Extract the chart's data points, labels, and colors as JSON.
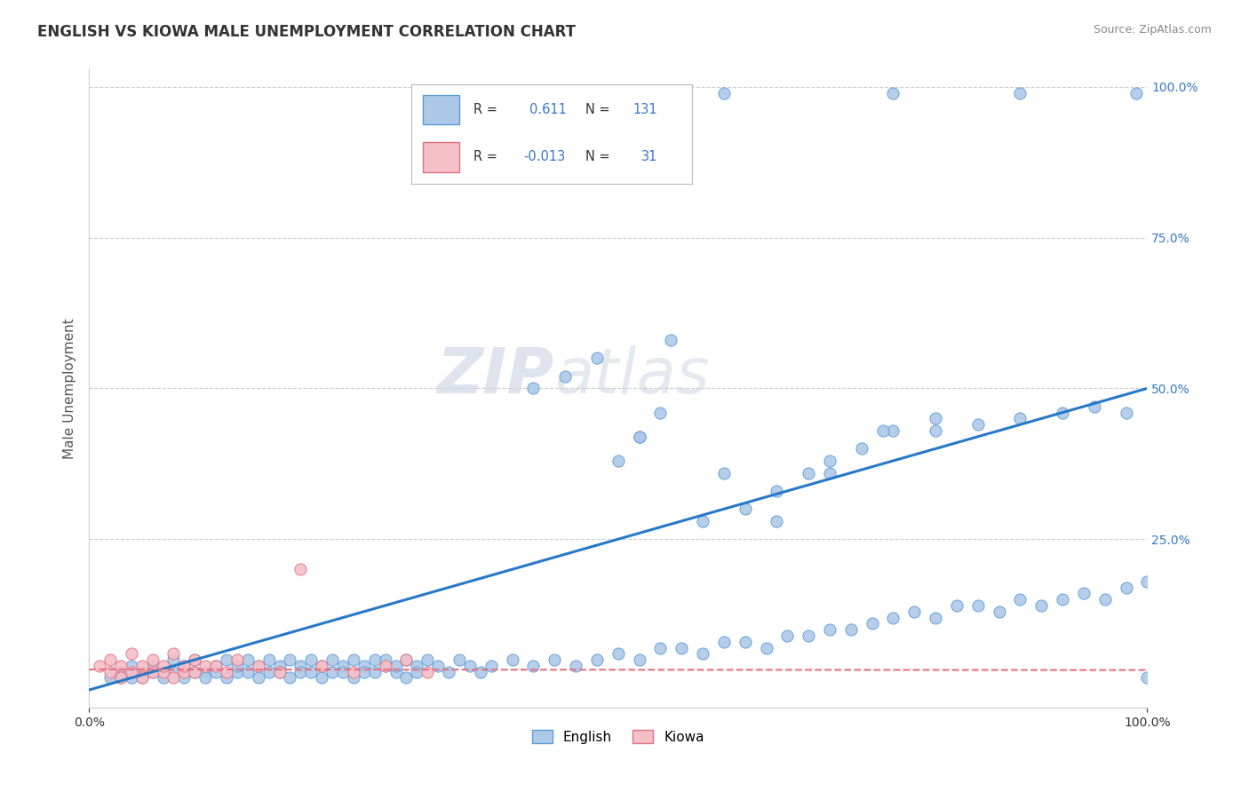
{
  "title": "ENGLISH VS KIOWA MALE UNEMPLOYMENT CORRELATION CHART",
  "source_text": "Source: ZipAtlas.com",
  "ylabel": "Male Unemployment",
  "xlim": [
    0.0,
    1.0
  ],
  "ylim": [
    -0.03,
    1.03
  ],
  "ytick_positions": [
    0.0,
    0.25,
    0.5,
    0.75,
    1.0
  ],
  "ytick_labels": [
    "",
    "25.0%",
    "50.0%",
    "75.0%",
    "100.0%"
  ],
  "english_fill_color": "#aec9e8",
  "english_edge_color": "#5b9bd5",
  "kiowa_fill_color": "#f5bfc8",
  "kiowa_edge_color": "#e07080",
  "english_line_color": "#2878c8",
  "kiowa_line_color": "#e87080",
  "grid_color": "#cccccc",
  "english_R": 0.611,
  "english_N": 131,
  "kiowa_R": -0.013,
  "kiowa_N": 31,
  "legend_label_english": "English",
  "legend_label_kiowa": "Kiowa",
  "watermark_ZIP": "ZIP",
  "watermark_atlas": "atlas",
  "background_color": "#ffffff",
  "title_color": "#333333",
  "source_color": "#888888",
  "ylabel_color": "#555555",
  "ytick_color": "#3878c8",
  "xtick_color": "#333333",
  "legend_R_color": "#333333",
  "legend_val_color": "#3878c8",
  "eng_trend_x": [
    0.0,
    1.0
  ],
  "eng_trend_y": [
    0.0,
    0.5
  ],
  "kio_trend_x": [
    0.0,
    1.0
  ],
  "kio_trend_y": [
    0.034,
    0.033
  ],
  "english_scatter_x": [
    0.02,
    0.03,
    0.03,
    0.04,
    0.04,
    0.05,
    0.05,
    0.06,
    0.06,
    0.07,
    0.07,
    0.08,
    0.08,
    0.09,
    0.09,
    0.1,
    0.1,
    0.11,
    0.11,
    0.12,
    0.12,
    0.13,
    0.13,
    0.14,
    0.14,
    0.15,
    0.15,
    0.16,
    0.16,
    0.17,
    0.17,
    0.18,
    0.18,
    0.19,
    0.19,
    0.2,
    0.2,
    0.21,
    0.21,
    0.22,
    0.22,
    0.23,
    0.23,
    0.24,
    0.24,
    0.25,
    0.25,
    0.26,
    0.26,
    0.27,
    0.27,
    0.28,
    0.28,
    0.29,
    0.29,
    0.3,
    0.3,
    0.31,
    0.31,
    0.32,
    0.33,
    0.34,
    0.35,
    0.36,
    0.37,
    0.38,
    0.4,
    0.42,
    0.44,
    0.46,
    0.48,
    0.5,
    0.52,
    0.54,
    0.56,
    0.58,
    0.6,
    0.62,
    0.64,
    0.66,
    0.68,
    0.7,
    0.72,
    0.74,
    0.76,
    0.78,
    0.8,
    0.82,
    0.84,
    0.86,
    0.88,
    0.9,
    0.92,
    0.94,
    0.96,
    0.98,
    1.0,
    0.5,
    0.52,
    0.54,
    0.58,
    0.62,
    0.65,
    0.68,
    0.7,
    0.73,
    0.76,
    0.8,
    0.84,
    0.88,
    0.92,
    0.95,
    0.98,
    1.0,
    0.42,
    0.45,
    0.48,
    0.52,
    0.55,
    0.6,
    0.65,
    0.7,
    0.75,
    0.8,
    0.6,
    0.76,
    0.88,
    0.99
  ],
  "english_scatter_y": [
    0.02,
    0.03,
    0.02,
    0.04,
    0.02,
    0.03,
    0.02,
    0.03,
    0.04,
    0.03,
    0.02,
    0.05,
    0.03,
    0.04,
    0.02,
    0.03,
    0.05,
    0.03,
    0.02,
    0.04,
    0.03,
    0.02,
    0.05,
    0.03,
    0.04,
    0.03,
    0.05,
    0.04,
    0.02,
    0.03,
    0.05,
    0.04,
    0.03,
    0.05,
    0.02,
    0.04,
    0.03,
    0.05,
    0.03,
    0.04,
    0.02,
    0.05,
    0.03,
    0.04,
    0.03,
    0.05,
    0.02,
    0.04,
    0.03,
    0.05,
    0.03,
    0.04,
    0.05,
    0.03,
    0.04,
    0.02,
    0.05,
    0.04,
    0.03,
    0.05,
    0.04,
    0.03,
    0.05,
    0.04,
    0.03,
    0.04,
    0.05,
    0.04,
    0.05,
    0.04,
    0.05,
    0.06,
    0.05,
    0.07,
    0.07,
    0.06,
    0.08,
    0.08,
    0.07,
    0.09,
    0.09,
    0.1,
    0.1,
    0.11,
    0.12,
    0.13,
    0.12,
    0.14,
    0.14,
    0.13,
    0.15,
    0.14,
    0.15,
    0.16,
    0.15,
    0.17,
    0.18,
    0.38,
    0.42,
    0.46,
    0.28,
    0.3,
    0.33,
    0.36,
    0.38,
    0.4,
    0.43,
    0.45,
    0.44,
    0.45,
    0.46,
    0.47,
    0.46,
    0.02,
    0.5,
    0.52,
    0.55,
    0.42,
    0.58,
    0.36,
    0.28,
    0.36,
    0.43,
    0.43,
    0.99,
    0.99,
    0.99,
    0.99
  ],
  "kiowa_scatter_x": [
    0.01,
    0.02,
    0.02,
    0.03,
    0.03,
    0.04,
    0.04,
    0.05,
    0.05,
    0.06,
    0.06,
    0.07,
    0.07,
    0.08,
    0.08,
    0.09,
    0.09,
    0.1,
    0.1,
    0.11,
    0.12,
    0.13,
    0.14,
    0.16,
    0.18,
    0.2,
    0.22,
    0.25,
    0.28,
    0.3,
    0.32
  ],
  "kiowa_scatter_y": [
    0.04,
    0.05,
    0.03,
    0.04,
    0.02,
    0.06,
    0.03,
    0.04,
    0.02,
    0.03,
    0.05,
    0.03,
    0.04,
    0.02,
    0.06,
    0.03,
    0.04,
    0.05,
    0.03,
    0.04,
    0.04,
    0.03,
    0.05,
    0.04,
    0.03,
    0.2,
    0.04,
    0.03,
    0.04,
    0.05,
    0.03
  ]
}
